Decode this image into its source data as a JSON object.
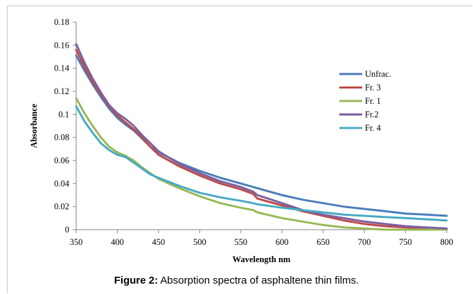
{
  "figure": {
    "caption_label": "Figure 2:",
    "caption_text": " Absorption spectra of asphaltene thin films."
  },
  "chart_data": {
    "type": "line",
    "xlabel": "Wavelength  nm",
    "ylabel": "Absorbance",
    "xlim": [
      350,
      800
    ],
    "ylim": [
      0,
      0.18
    ],
    "x_ticks": [
      "350",
      "400",
      "450",
      "500",
      "550",
      "600",
      "650",
      "700",
      "750",
      "800"
    ],
    "y_ticks": [
      "0",
      "0.02",
      "0.04",
      "0.06",
      "0.08",
      "0.1",
      "0.12",
      "0.14",
      "0.16",
      "0.18"
    ],
    "legend_position": "right",
    "grid": false,
    "x": [
      350,
      360,
      370,
      380,
      390,
      400,
      410,
      420,
      430,
      440,
      450,
      475,
      500,
      525,
      550,
      565,
      570,
      600,
      625,
      650,
      675,
      700,
      725,
      750,
      775,
      800
    ],
    "series": [
      {
        "name": "Unfrac.",
        "color": "#4a7ebb",
        "values": [
          0.151,
          0.138,
          0.126,
          0.115,
          0.105,
          0.097,
          0.091,
          0.086,
          0.079,
          0.072,
          0.067,
          0.058,
          0.051,
          0.045,
          0.04,
          0.037,
          0.036,
          0.03,
          0.026,
          0.023,
          0.02,
          0.018,
          0.016,
          0.014,
          0.013,
          0.012
        ]
      },
      {
        "name": "Fr. 3",
        "color": "#be4b48",
        "values": [
          0.156,
          0.141,
          0.128,
          0.117,
          0.107,
          0.099,
          0.093,
          0.087,
          0.08,
          0.072,
          0.065,
          0.055,
          0.047,
          0.04,
          0.035,
          0.031,
          0.027,
          0.021,
          0.016,
          0.012,
          0.008,
          0.005,
          0.003,
          0.002,
          0.001,
          0.0
        ]
      },
      {
        "name": "Fr. 1",
        "color": "#98b954",
        "values": [
          0.114,
          0.101,
          0.09,
          0.08,
          0.072,
          0.067,
          0.064,
          0.06,
          0.054,
          0.049,
          0.044,
          0.036,
          0.029,
          0.023,
          0.019,
          0.017,
          0.015,
          0.01,
          0.007,
          0.004,
          0.002,
          0.001,
          0.0,
          0.0,
          0.0,
          0.0
        ]
      },
      {
        "name": "Fr.2",
        "color": "#7d60a0",
        "values": [
          0.161,
          0.145,
          0.131,
          0.119,
          0.108,
          0.101,
          0.096,
          0.09,
          0.082,
          0.075,
          0.068,
          0.057,
          0.049,
          0.042,
          0.037,
          0.033,
          0.03,
          0.023,
          0.017,
          0.013,
          0.01,
          0.007,
          0.005,
          0.003,
          0.002,
          0.001
        ]
      },
      {
        "name": "Fr. 4",
        "color": "#46aac5",
        "values": [
          0.107,
          0.094,
          0.084,
          0.075,
          0.069,
          0.065,
          0.063,
          0.058,
          0.053,
          0.048,
          0.045,
          0.038,
          0.032,
          0.028,
          0.025,
          0.023,
          0.022,
          0.019,
          0.017,
          0.015,
          0.013,
          0.012,
          0.011,
          0.01,
          0.009,
          0.008
        ]
      }
    ]
  }
}
